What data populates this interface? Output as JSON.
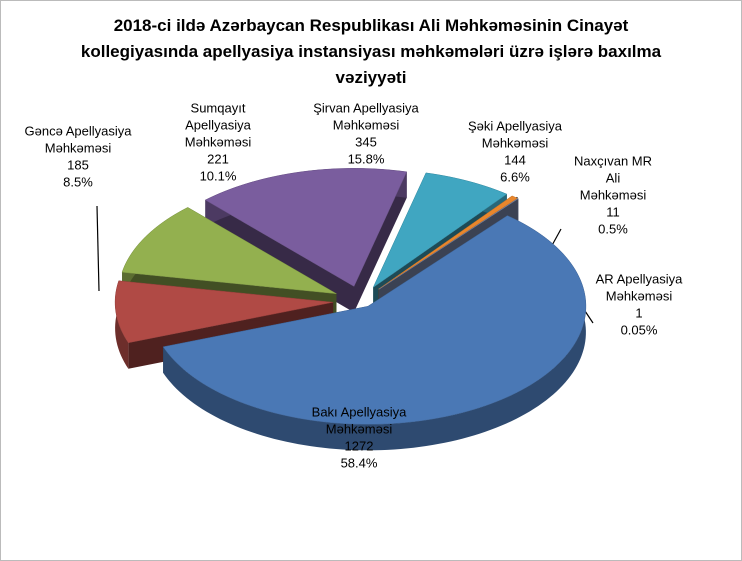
{
  "chart_data": {
    "type": "pie",
    "title": "2018-ci ildə Azərbaycan Respublikası Ali Məhkəməsinin Cinayət kollegiyasında  apellyasiya instansiyası məhkəmələri üzrə işlərə baxılma vəziyyəti",
    "categories": [
      [
        "Şirvan Apellyasiya",
        "Məhkəməsi"
      ],
      [
        "Şəki Apellyasiya",
        "Məhkəməsi"
      ],
      [
        "Naxçıvan MR",
        "Ali",
        "Məhkəməsi"
      ],
      [
        "AR Apellyasiya",
        "Məhkəməsi"
      ],
      [
        "Bakı Apellyasiya",
        "Məhkəməsi"
      ],
      [
        "Gəncə Apellyasiya",
        "Məhkəməsi"
      ],
      [
        "Sumqayıt",
        "Apellyasiya",
        "Məhkəməsi"
      ]
    ],
    "values": [
      345,
      144,
      11,
      1,
      1272,
      185,
      221
    ],
    "percent_labels": [
      "15.8%",
      "6.6%",
      "0.5%",
      "0.05%",
      "58.4%",
      "8.5%",
      "10.1%"
    ],
    "colors": [
      "#7a5d9e",
      "#40a6c1",
      "#e8862c",
      "#8293b9",
      "#4a78b5",
      "#b04a45",
      "#93b04f"
    ]
  }
}
